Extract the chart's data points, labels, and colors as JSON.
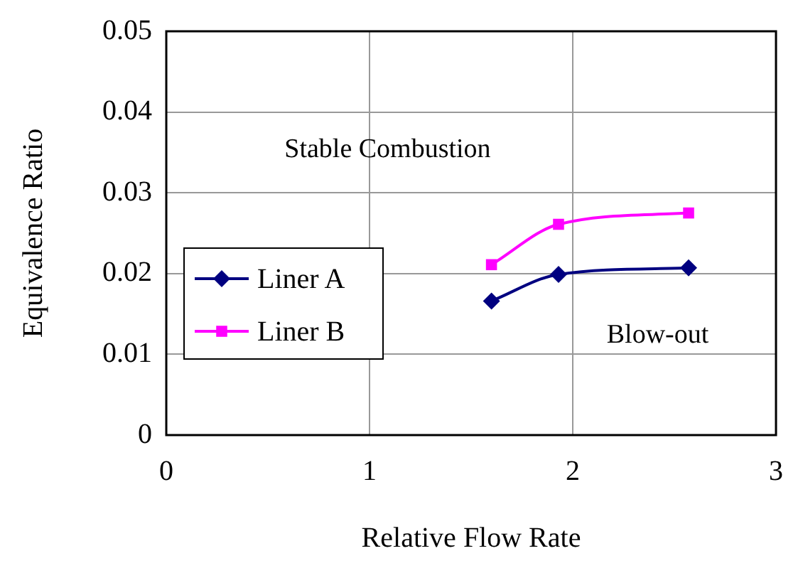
{
  "chart_data": {
    "type": "line",
    "xlabel": "Relative Flow Rate",
    "ylabel": "Equivalence Ratio",
    "x": [
      1.6,
      1.93,
      2.57
    ],
    "series": [
      {
        "name": "Liner A",
        "color": "#000080",
        "marker": "diamond",
        "values": [
          0.0166,
          0.0199,
          0.0207
        ]
      },
      {
        "name": "Liner B",
        "color": "#ff00ff",
        "marker": "square",
        "values": [
          0.0211,
          0.0261,
          0.0275
        ]
      }
    ],
    "xlim": [
      0,
      3
    ],
    "xticks": [
      0,
      1,
      2,
      3
    ],
    "ylim": [
      0,
      0.05
    ],
    "yticks": [
      0,
      0.01,
      0.02,
      0.03,
      0.04,
      0.05
    ],
    "grid": true,
    "legend": "left",
    "annotations": [
      "Stable Combustion",
      "Blow-out"
    ]
  }
}
